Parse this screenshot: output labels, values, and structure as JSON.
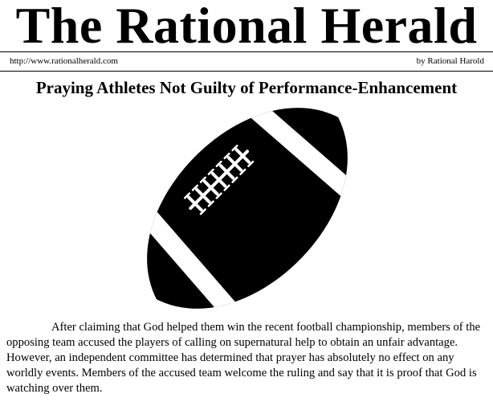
{
  "masthead": {
    "title": "The Rational Herald"
  },
  "subheader": {
    "url": "http://www.rationalherald.com",
    "byline": "by Rational Harold"
  },
  "article": {
    "headline": "Praying Athletes Not Guilty of Performance-Enhancement",
    "image_icon": "football-icon",
    "body": "After claiming that God helped them win the recent football championship, members of the opposing team accused the players of calling on supernatural help to obtain an unfair advantage. However, an independent committee has determined that prayer has absolutely no effect on any worldly events. Members of the accused team welcome the ruling and say that it is proof that God is watching over them."
  }
}
